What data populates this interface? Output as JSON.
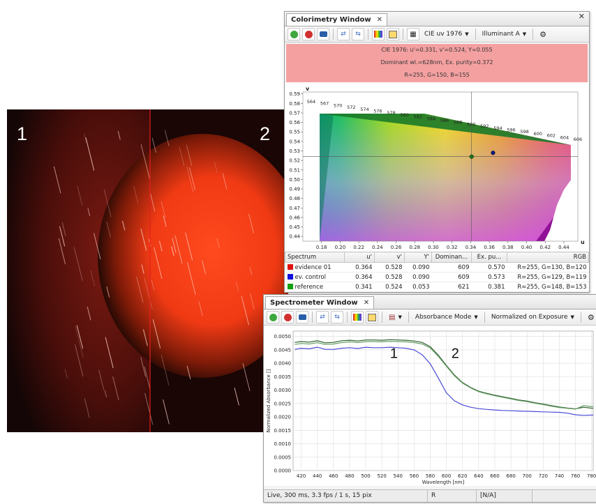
{
  "photo": {
    "label_left": "1",
    "label_right": "2"
  },
  "colorimetry": {
    "tab_title": "Colorimetry Window",
    "toolbar": {
      "color_space": "CIE uv 1976",
      "illuminant": "Illuminant A"
    },
    "info": {
      "line1": "CIE 1976: u'=0.331, v'=0.524, Y=0.055",
      "line2": "Dominant wl.=628nm, Ex. purity=0.372",
      "line3": "R=255, G=150, B=155",
      "color": "#f4a0a0"
    },
    "chart_data": {
      "type": "scatter",
      "xlabel": "u",
      "ylabel": "v",
      "xlim": [
        0.16,
        0.455
      ],
      "ylim": [
        0.435,
        0.592
      ],
      "x_ticks": [
        "0.18",
        "0.20",
        "0.22",
        "0.24",
        "0.26",
        "0.28",
        "0.30",
        "0.32",
        "0.34",
        "0.36",
        "0.38",
        "0.40",
        "0.42",
        "0.44"
      ],
      "y_ticks": [
        "0.59",
        "0.58",
        "0.57",
        "0.56",
        "0.55",
        "0.54",
        "0.53",
        "0.52",
        "0.51",
        "0.50",
        "0.49",
        "0.48",
        "0.47",
        "0.46",
        "0.45",
        "0.44"
      ],
      "wavelength_labels": [
        "564",
        "567",
        "570",
        "572",
        "574",
        "576",
        "578",
        "580",
        "582",
        "584",
        "586",
        "588",
        "590",
        "592",
        "594",
        "596",
        "598",
        "600",
        "602",
        "604",
        "606"
      ],
      "points": [
        {
          "u": 0.364,
          "v": 0.528,
          "color": "#0a1a80"
        },
        {
          "u": 0.341,
          "v": 0.524,
          "color": "#1a7a1a"
        }
      ],
      "crosshair": {
        "u": 0.341,
        "v": 0.524
      }
    },
    "table": {
      "headers": [
        "Spectrum",
        "u'",
        "v'",
        "Y'",
        "Dominan...",
        "Ex. pu...",
        "RGB"
      ],
      "rows": [
        {
          "color": "#e01010",
          "name": "evidence 01",
          "u": "0.364",
          "v": "0.528",
          "y": "0.090",
          "dom": "609",
          "ex": "0.570",
          "rgb": "R=255, G=130, B=120"
        },
        {
          "color": "#1010e0",
          "name": "ev. control",
          "u": "0.364",
          "v": "0.528",
          "y": "0.090",
          "dom": "609",
          "ex": "0.573",
          "rgb": "R=255, G=129, B=119"
        },
        {
          "color": "#10a010",
          "name": "reference",
          "u": "0.341",
          "v": "0.524",
          "y": "0.053",
          "dom": "621",
          "ex": "0.381",
          "rgb": "R=255, G=148, B=153"
        }
      ]
    }
  },
  "spectrometer": {
    "tab_title": "Spectrometer Window",
    "toolbar": {
      "mode": "Absorbance Mode",
      "normalization": "Normalized on Exposure"
    },
    "status": {
      "left": "Live, 300 ms, 3.3 fps / 1 s, 15 pix",
      "mid": "R",
      "right": "[N/A]"
    },
    "chart_data": {
      "type": "line",
      "xlabel": "Wavelength [nm]",
      "ylabel": "Normalized Absorbance []",
      "xlim": [
        410,
        782
      ],
      "ylim": [
        0,
        0.0052
      ],
      "x_ticks": [
        "420",
        "440",
        "460",
        "480",
        "500",
        "520",
        "540",
        "560",
        "580",
        "600",
        "620",
        "640",
        "660",
        "680",
        "700",
        "720",
        "740",
        "760",
        "780"
      ],
      "y_ticks": [
        "0.0050",
        "0.0045",
        "0.0040",
        "0.0035",
        "0.0030",
        "0.0025",
        "0.0020",
        "0.0015",
        "0.0010",
        "0.0005",
        "0.0000"
      ],
      "annotations": [
        {
          "text": "1",
          "x": 535,
          "y": 0.0042
        },
        {
          "text": "2",
          "x": 611,
          "y": 0.0042
        }
      ],
      "x": [
        412,
        420,
        430,
        440,
        450,
        460,
        470,
        480,
        490,
        500,
        510,
        520,
        530,
        540,
        550,
        560,
        570,
        580,
        590,
        600,
        610,
        620,
        630,
        640,
        650,
        660,
        670,
        680,
        690,
        700,
        710,
        720,
        730,
        740,
        750,
        760,
        770,
        782
      ],
      "series": [
        {
          "color": "#2c5e2c",
          "values": [
            0.00478,
            0.00481,
            0.00479,
            0.00484,
            0.00476,
            0.00478,
            0.00484,
            0.00486,
            0.00483,
            0.00487,
            0.00487,
            0.00486,
            0.00488,
            0.00487,
            0.00486,
            0.00483,
            0.00478,
            0.00462,
            0.0043,
            0.00392,
            0.00356,
            0.00328,
            0.0031,
            0.00296,
            0.00288,
            0.00281,
            0.00275,
            0.00269,
            0.00263,
            0.00259,
            0.00253,
            0.00248,
            0.00242,
            0.00237,
            0.00233,
            0.0023,
            0.00236,
            0.00232
          ]
        },
        {
          "color": "#6aa06a",
          "values": [
            0.0047,
            0.00474,
            0.00472,
            0.00477,
            0.0047,
            0.00472,
            0.00477,
            0.0048,
            0.00477,
            0.00481,
            0.00481,
            0.0048,
            0.00482,
            0.00481,
            0.0048,
            0.00477,
            0.00472,
            0.00457,
            0.00426,
            0.00389,
            0.00353,
            0.00326,
            0.00308,
            0.00294,
            0.00286,
            0.00279,
            0.00273,
            0.00267,
            0.00261,
            0.00257,
            0.00251,
            0.00246,
            0.0024,
            0.00235,
            0.00232,
            0.00229,
            0.00242,
            0.00238
          ]
        },
        {
          "color": "#4a4ad8",
          "values": [
            0.00452,
            0.00456,
            0.00454,
            0.0046,
            0.00452,
            0.00452,
            0.00456,
            0.00458,
            0.00455,
            0.0046,
            0.00458,
            0.00458,
            0.0046,
            0.00458,
            0.00456,
            0.0045,
            0.00432,
            0.00398,
            0.00345,
            0.0029,
            0.0026,
            0.00245,
            0.00236,
            0.00231,
            0.00228,
            0.00226,
            0.00224,
            0.00223,
            0.00222,
            0.00221,
            0.0022,
            0.00219,
            0.00218,
            0.00217,
            0.00214,
            0.00208,
            0.00206,
            0.00207
          ]
        }
      ]
    }
  }
}
